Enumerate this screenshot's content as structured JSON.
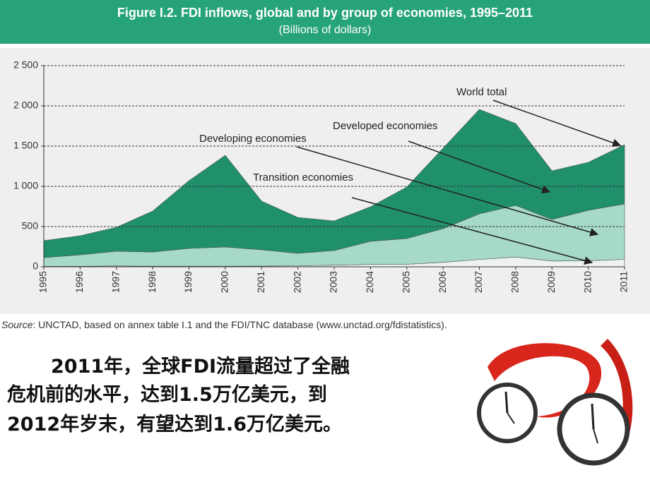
{
  "chart_data": {
    "type": "stacked-area",
    "title": "Figure I.2. FDI inflows, global and by group of economies, 1995–2011",
    "subtitle": "(Billions of dollars)",
    "categories": [
      "1995",
      "1996",
      "1997",
      "1998",
      "1999",
      "2000",
      "2001",
      "2002",
      "2003",
      "2004",
      "2005",
      "2006",
      "2007",
      "2008",
      "2009",
      "2010",
      "2011"
    ],
    "series": [
      {
        "name": "Transition economies",
        "color": "#eef3ef",
        "values": [
          5,
          6,
          10,
          7,
          7,
          7,
          9,
          11,
          20,
          30,
          31,
          55,
          91,
          121,
          72,
          74,
          92
        ]
      },
      {
        "name": "Developing economies",
        "color": "#a6dac6",
        "values": [
          109,
          143,
          183,
          177,
          221,
          239,
          202,
          156,
          182,
          286,
          320,
          419,
          567,
          642,
          516,
          628,
          689
        ]
      },
      {
        "name": "Developed economies",
        "color": "#1f8f6c",
        "values": [
          211,
          237,
          298,
          509,
          842,
          1140,
          605,
          447,
          368,
          430,
          640,
          1000,
          1298,
          1018,
          605,
          596,
          737
        ]
      }
    ],
    "annotation": "World total",
    "ylim": [
      0,
      2500
    ],
    "yticks": [
      0,
      500,
      {
        "value": 1000,
        "label": "1 000"
      },
      {
        "value": 1500,
        "label": "1 500"
      },
      {
        "value": 2000,
        "label": "2 000"
      },
      {
        "value": 2500,
        "label": "2 500"
      }
    ],
    "grid": true,
    "source_label": "Source",
    "source_text": ": UNCTAD, based on annex table I.1 and the FDI/TNC database (www.unctad.org/fdistatistics)."
  },
  "body_lines": [
    "2011年，全球FDI流量超过了全融",
    "危机前的水平，达到1.5万亿美元，到",
    "2012年岁末，有望达到1.6万亿美元。"
  ]
}
